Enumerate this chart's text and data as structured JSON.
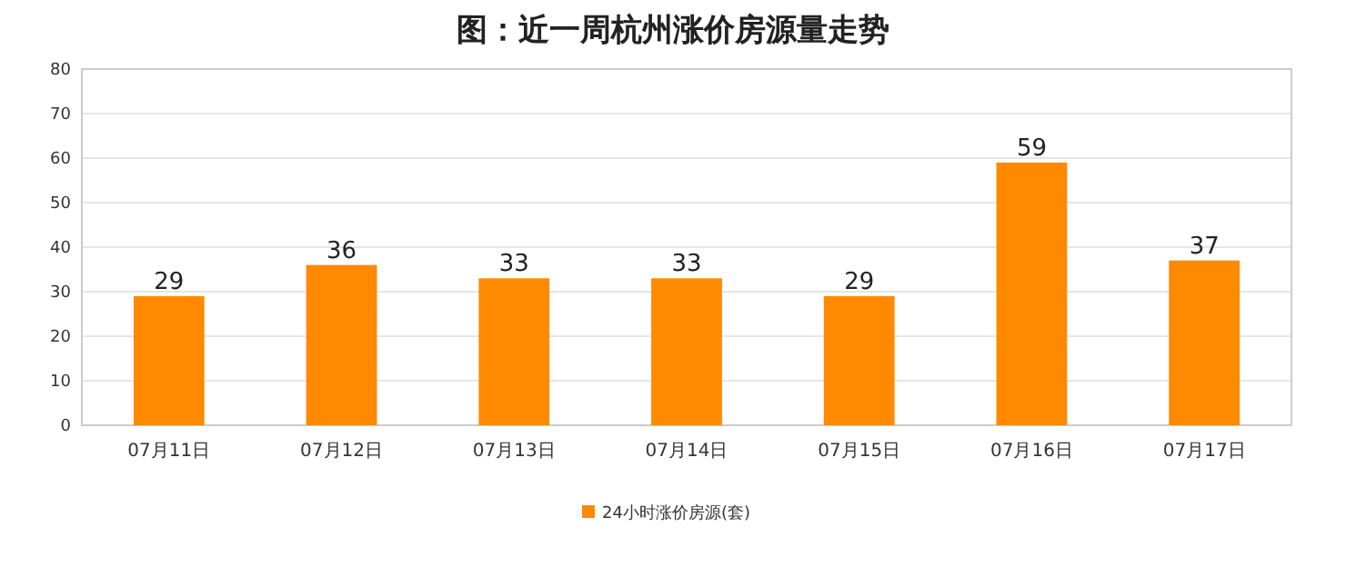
{
  "chart_data": {
    "type": "bar",
    "title": "图：近一周杭州涨价房源量走势",
    "categories": [
      "07月11日",
      "07月12日",
      "07月13日",
      "07月14日",
      "07月15日",
      "07月16日",
      "07月17日"
    ],
    "series": [
      {
        "name": "24小时涨价房源(套)",
        "color": "#ff8a00",
        "values": [
          29,
          36,
          33,
          33,
          29,
          59,
          37
        ]
      }
    ],
    "ylim": [
      0,
      80
    ],
    "yticks": [
      0,
      10,
      20,
      30,
      40,
      50,
      60,
      70,
      80
    ],
    "grid": "y",
    "legend": "bottom",
    "data_labels": true
  }
}
